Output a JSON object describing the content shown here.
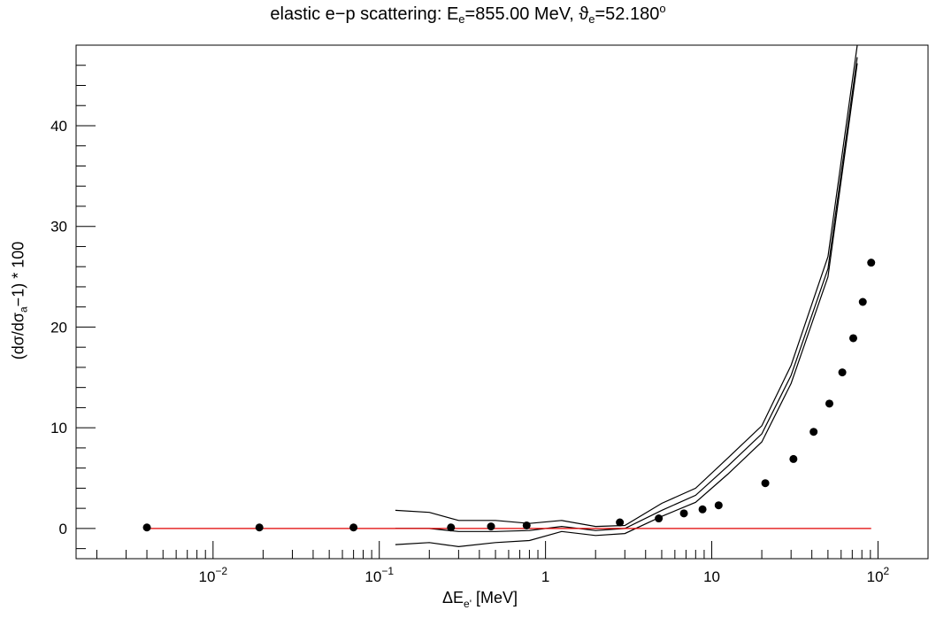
{
  "chart_data": {
    "type": "scatter",
    "title": {
      "prefix": "elastic e−p scattering: E",
      "sub1": "e",
      "mid": "=855.00 MeV,  ϑ",
      "sub2": "e",
      "suffix": "=52.180",
      "sup": "o"
    },
    "ylabel": {
      "part1": "(dσ/dσ",
      "sub": "a",
      "part2": "−1) * 100"
    },
    "xlabel": {
      "part1": "ΔE",
      "sub": "e'",
      "part2": "  [MeV]"
    },
    "xscale": "log",
    "xlim": [
      0.0015,
      200
    ],
    "ylim": [
      -3,
      48
    ],
    "x_ticks": [
      {
        "base": "10",
        "exp": "−2",
        "value": 0.01
      },
      {
        "base": "10",
        "exp": "−1",
        "value": 0.1
      },
      {
        "base": "1",
        "exp": "",
        "value": 1
      },
      {
        "base": "10",
        "exp": "",
        "value": 10
      },
      {
        "base": "10",
        "exp": "2",
        "value": 100
      }
    ],
    "y_ticks": [
      0,
      10,
      20,
      30,
      40
    ],
    "points": {
      "x": [
        0.004,
        0.019,
        0.07,
        0.27,
        0.47,
        0.77,
        2.8,
        4.8,
        6.8,
        8.8,
        11,
        21,
        31,
        41,
        51,
        61,
        71,
        81,
        91
      ],
      "y": [
        0.1,
        0.1,
        0.1,
        0.1,
        0.2,
        0.3,
        0.6,
        1.0,
        1.5,
        1.9,
        2.3,
        4.5,
        6.9,
        9.6,
        12.4,
        15.5,
        18.9,
        22.5,
        26.4
      ]
    },
    "band": {
      "x": [
        0.125,
        0.2,
        0.3,
        0.5,
        0.8,
        1.25,
        2.0,
        3.0,
        5.0,
        8.0,
        12.5,
        20,
        30,
        50,
        75
      ],
      "upper": [
        1.8,
        1.6,
        0.8,
        0.8,
        0.5,
        0.8,
        0.2,
        0.3,
        2.5,
        4.0,
        7.0,
        10.2,
        16.2,
        27.0,
        48.0
      ],
      "center": [
        0.0,
        0.0,
        -0.3,
        -0.3,
        -0.2,
        0.2,
        -0.2,
        0.0,
        1.8,
        3.3,
        6.2,
        9.4,
        15.2,
        25.8,
        46.8
      ],
      "lower": [
        -1.6,
        -1.4,
        -1.8,
        -1.4,
        -1.2,
        -0.3,
        -0.7,
        -0.5,
        1.2,
        2.6,
        5.4,
        8.6,
        14.4,
        25.0,
        46.2
      ]
    },
    "reference_line": {
      "y": 0,
      "x_start": 0.004,
      "x_end": 91,
      "color": "#e00000"
    },
    "colors": {
      "points": "#000000",
      "band": "#000000",
      "axes": "#000000"
    },
    "grid": false,
    "legend": "none"
  }
}
